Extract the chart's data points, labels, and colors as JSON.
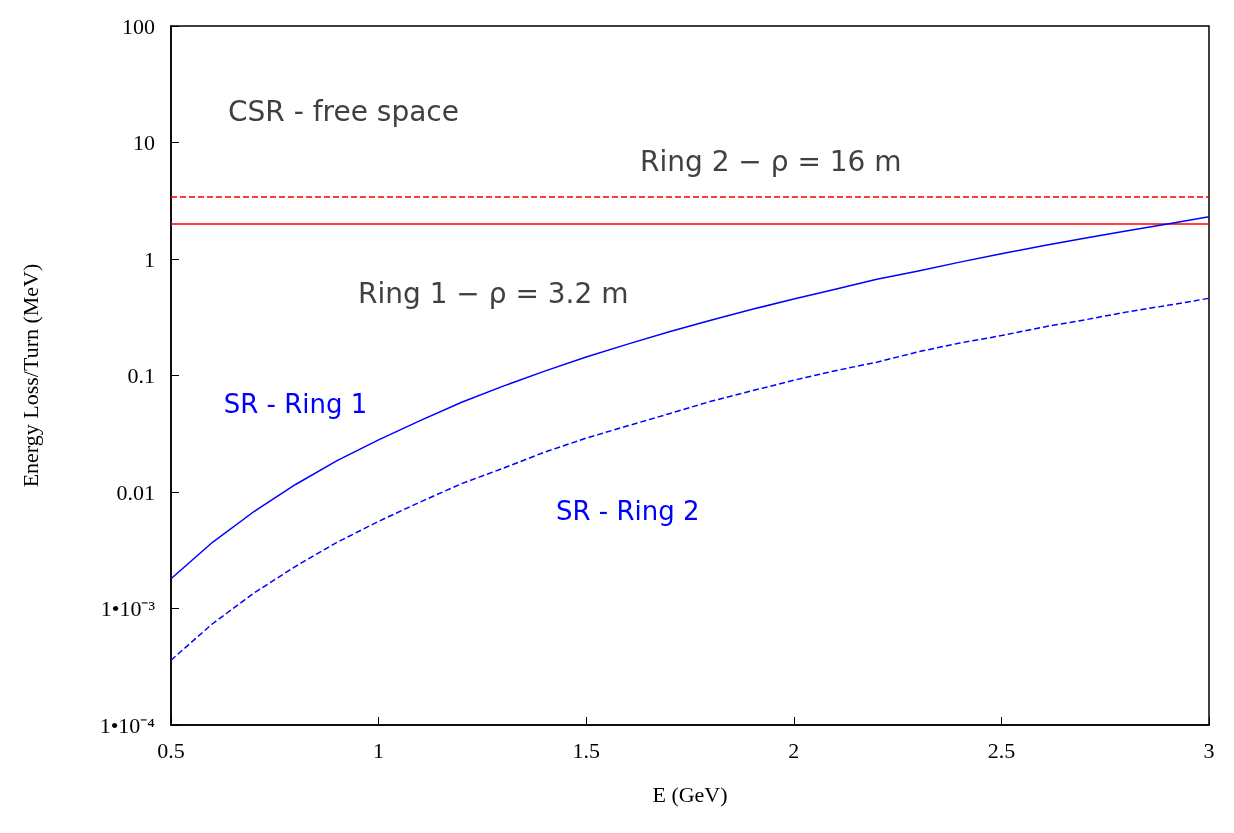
{
  "chart_data": {
    "type": "line",
    "xlabel": "E (GeV)",
    "ylabel": "Energy Loss/Turn (MeV)",
    "log": "y",
    "xlim": [
      0.5,
      3
    ],
    "xticks": [
      0.5,
      1,
      1.5,
      2,
      2.5,
      3
    ],
    "ylim": [
      0.0001,
      100
    ],
    "yticks": [
      {
        "value": 0.0001,
        "label": "1•10⁻⁴"
      },
      {
        "value": 0.001,
        "label": "1•10⁻³"
      },
      0.01,
      0.1,
      1,
      10,
      100
    ],
    "grid": false,
    "x": [
      0.5,
      0.6,
      0.7,
      0.8,
      0.9,
      1.0,
      1.1,
      1.2,
      1.3,
      1.4,
      1.5,
      1.6,
      1.7,
      1.8,
      1.9,
      2.0,
      2.1,
      2.2,
      2.3,
      2.4,
      2.5,
      2.6,
      2.7,
      2.8,
      2.9,
      3.0
    ],
    "series": [
      {
        "name": "SR - Ring 1",
        "color": "#0000ff",
        "line_style": "solid",
        "values": [
          0.0018,
          0.0037,
          0.0068,
          0.0116,
          0.0186,
          0.028,
          0.041,
          0.059,
          0.081,
          0.109,
          0.144,
          0.186,
          0.237,
          0.298,
          0.37,
          0.454,
          0.55,
          0.67,
          0.79,
          0.94,
          1.11,
          1.3,
          1.51,
          1.74,
          2.0,
          2.3
        ]
      },
      {
        "name": "SR - Ring 2",
        "color": "#0000ff",
        "line_style": "dashed",
        "values": [
          0.00036,
          0.00074,
          0.00136,
          0.0023,
          0.0037,
          0.0056,
          0.0082,
          0.0118,
          0.016,
          0.022,
          0.029,
          0.037,
          0.047,
          0.06,
          0.074,
          0.091,
          0.11,
          0.13,
          0.16,
          0.19,
          0.22,
          0.26,
          0.3,
          0.35,
          0.4,
          0.46
        ]
      }
    ],
    "ref_lines": [
      {
        "axis": "y",
        "value": 2.0,
        "color": "#ff0000",
        "line_style": "solid"
      },
      {
        "axis": "y",
        "value": 3.4,
        "color": "#ff0000",
        "line_style": "dashed"
      }
    ],
    "annotations": [
      "CSR - free space",
      "Ring 2 − ρ = 16 m",
      "Ring 1 − ρ = 3.2 m"
    ]
  }
}
